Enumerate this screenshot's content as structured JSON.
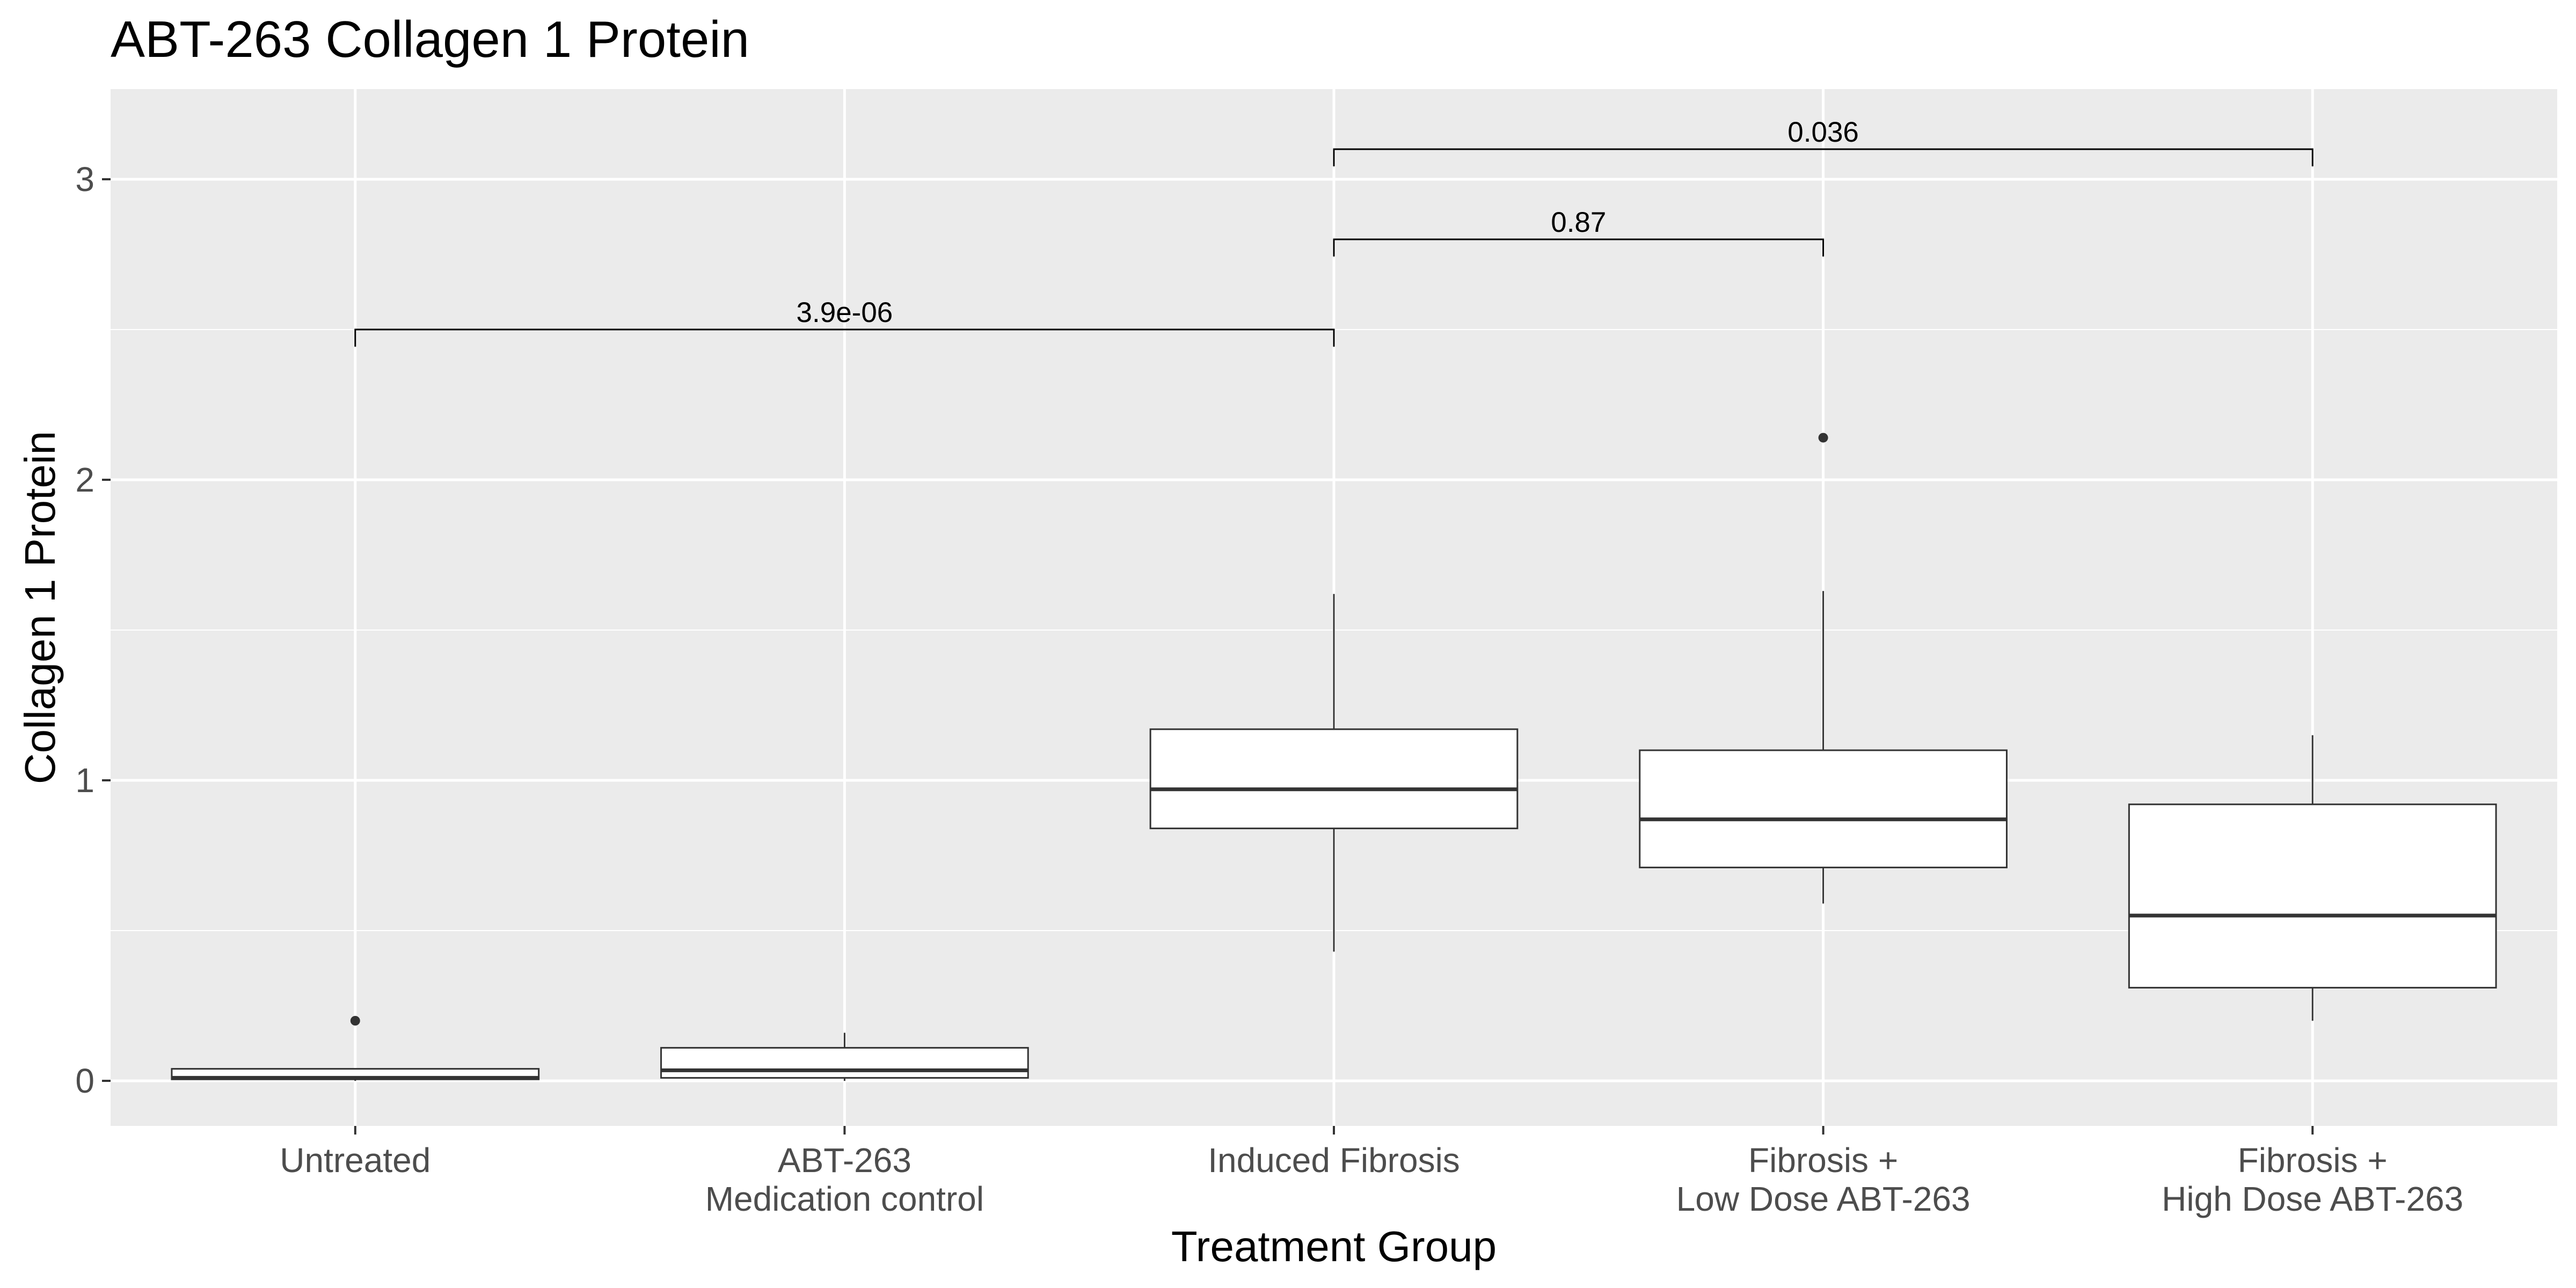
{
  "chart_data": {
    "type": "boxplot",
    "title": "ABT-263 Collagen 1 Protein",
    "xlabel": "Treatment Group",
    "ylabel": "Collagen 1 Protein",
    "ylim": [
      -0.15,
      3.3
    ],
    "yticks": [
      0,
      1,
      2,
      3
    ],
    "grid": true,
    "colors": {
      "panel_background": "#ebebeb",
      "grid_line": "#ffffff",
      "box_fill": "#ffffff",
      "box_stroke": "#333333",
      "tick_text": "#4d4d4d"
    },
    "categories": [
      [
        "Untreated"
      ],
      [
        "ABT-263",
        "Medication control"
      ],
      [
        "Induced Fibrosis"
      ],
      [
        "Fibrosis +",
        "Low Dose ABT-263"
      ],
      [
        "Fibrosis +",
        "High Dose ABT-263"
      ]
    ],
    "boxes": [
      {
        "whisker_low": 0.0,
        "q1": 0.005,
        "median": 0.01,
        "q3": 0.04,
        "whisker_high": 0.04,
        "outliers": [
          0.2
        ]
      },
      {
        "whisker_low": 0.0,
        "q1": 0.01,
        "median": 0.035,
        "q3": 0.11,
        "whisker_high": 0.16,
        "outliers": []
      },
      {
        "whisker_low": 0.43,
        "q1": 0.84,
        "median": 0.97,
        "q3": 1.17,
        "whisker_high": 1.62,
        "outliers": []
      },
      {
        "whisker_low": 0.59,
        "q1": 0.71,
        "median": 0.87,
        "q3": 1.1,
        "whisker_high": 1.63,
        "outliers": [
          2.14
        ]
      },
      {
        "whisker_low": 0.2,
        "q1": 0.31,
        "median": 0.55,
        "q3": 0.92,
        "whisker_high": 1.15,
        "outliers": []
      }
    ],
    "comparisons": [
      {
        "from": 0,
        "to": 2,
        "y": 2.5,
        "label": "3.9e-06"
      },
      {
        "from": 2,
        "to": 3,
        "y": 2.8,
        "label": "0.87"
      },
      {
        "from": 2,
        "to": 4,
        "y": 3.1,
        "label": "0.036"
      }
    ]
  }
}
